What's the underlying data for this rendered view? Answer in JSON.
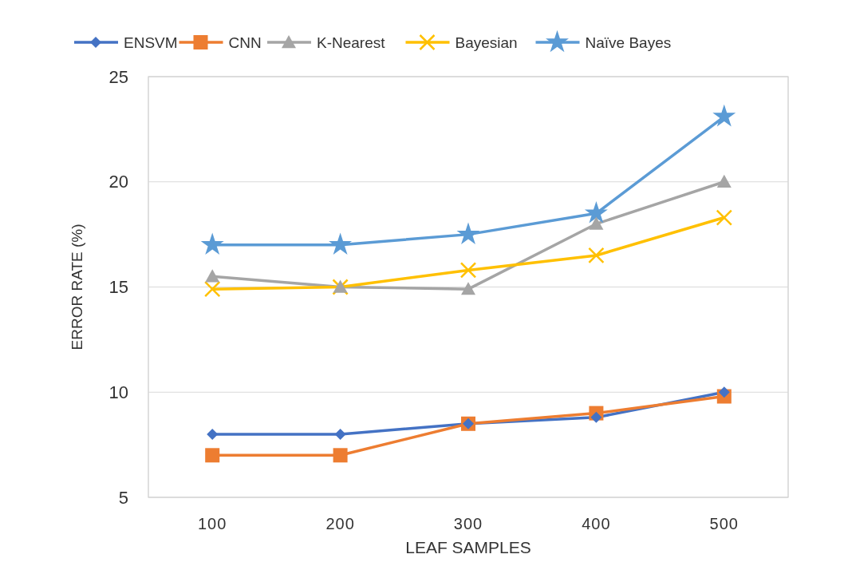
{
  "chart_data": {
    "type": "line",
    "xlabel": "LEAF SAMPLES",
    "ylabel": "ERROR RATE (%)",
    "categories": [
      "100",
      "200",
      "300",
      "400",
      "500"
    ],
    "ylim": [
      5,
      25
    ],
    "yticks": [
      5,
      10,
      15,
      20,
      25
    ],
    "grid": "y",
    "legend": "top",
    "series": [
      {
        "name": "ENSVM",
        "color": "#4472c4",
        "marker": "diamond",
        "values": [
          8,
          8,
          8.5,
          8.8,
          10
        ]
      },
      {
        "name": "CNN",
        "color": "#ed7d31",
        "marker": "square",
        "values": [
          7,
          7,
          8.5,
          9,
          9.8
        ]
      },
      {
        "name": "K-Nearest",
        "color": "#a5a5a5",
        "marker": "triangle",
        "values": [
          15.5,
          15,
          14.9,
          18,
          20
        ]
      },
      {
        "name": "Bayesian",
        "color": "#ffc000",
        "marker": "cross",
        "values": [
          14.9,
          15,
          15.8,
          16.5,
          18.3
        ]
      },
      {
        "name": "Naïve Bayes",
        "color": "#5b9bd5",
        "marker": "star",
        "values": [
          17,
          17,
          17.5,
          18.5,
          23.1
        ]
      }
    ]
  }
}
